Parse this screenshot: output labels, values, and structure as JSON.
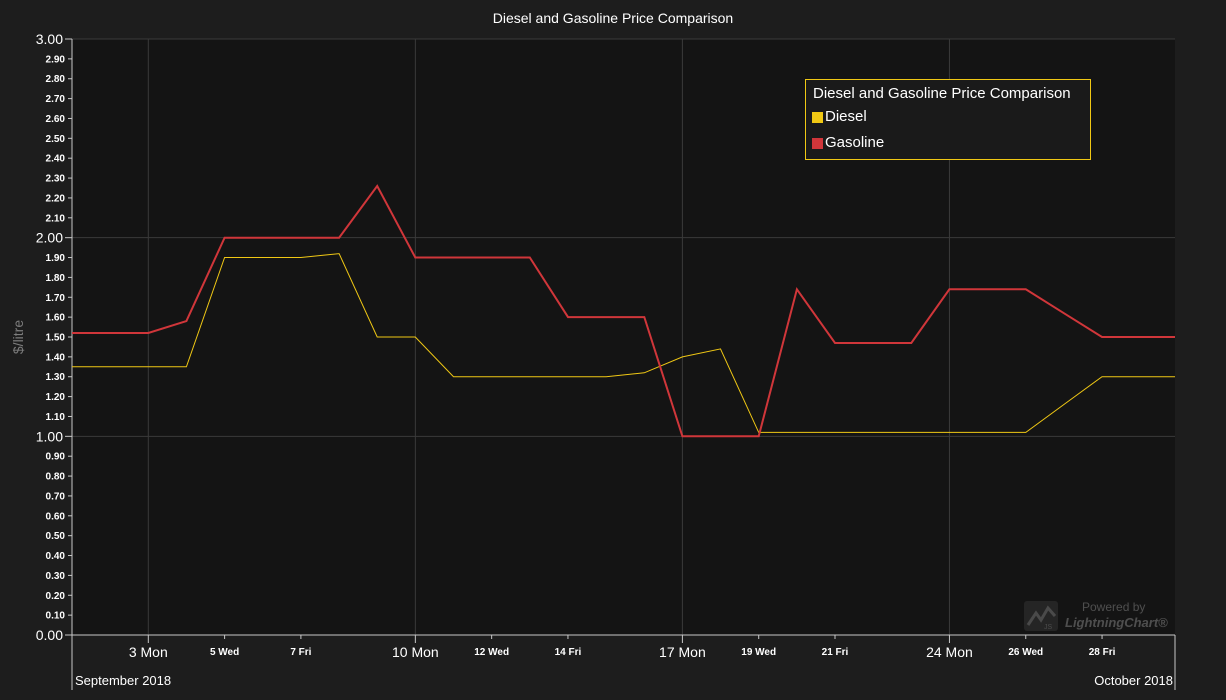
{
  "chart_data": {
    "type": "line",
    "title": "Diesel and Gasoline Price Comparison",
    "ylabel": "$/litre",
    "xlabel": "",
    "ylim": [
      0,
      3
    ],
    "grid": true,
    "legend_position": "top-right",
    "legend": {
      "title": "Diesel and Gasoline Price Comparison"
    },
    "x_axis": {
      "start_date": "2018-09-01",
      "end_date": "2018-09-30",
      "major_ticks": [
        {
          "date": "2018-09-03",
          "label": "3 Mon"
        },
        {
          "date": "2018-09-10",
          "label": "10 Mon"
        },
        {
          "date": "2018-09-17",
          "label": "17 Mon"
        },
        {
          "date": "2018-09-24",
          "label": "24 Mon"
        }
      ],
      "minor_ticks": [
        {
          "date": "2018-09-05",
          "label": "5 Wed"
        },
        {
          "date": "2018-09-07",
          "label": "7 Fri"
        },
        {
          "date": "2018-09-12",
          "label": "12 Wed"
        },
        {
          "date": "2018-09-14",
          "label": "14 Fri"
        },
        {
          "date": "2018-09-19",
          "label": "19 Wed"
        },
        {
          "date": "2018-09-21",
          "label": "21 Fri"
        },
        {
          "date": "2018-09-26",
          "label": "26 Wed"
        },
        {
          "date": "2018-09-28",
          "label": "28 Fri"
        }
      ],
      "month_labels": {
        "left": "September 2018",
        "right": "October 2018"
      }
    },
    "y_ticks": [
      "0.00",
      "0.10",
      "0.20",
      "0.30",
      "0.40",
      "0.50",
      "0.60",
      "0.70",
      "0.80",
      "0.90",
      "1.00",
      "1.10",
      "1.20",
      "1.30",
      "1.40",
      "1.50",
      "1.60",
      "1.70",
      "1.80",
      "1.90",
      "2.00",
      "2.10",
      "2.20",
      "2.30",
      "2.40",
      "2.50",
      "2.60",
      "2.70",
      "2.80",
      "2.90",
      "3.00"
    ],
    "y_major_ticks": [
      "0.00",
      "1.00",
      "2.00",
      "3.00"
    ],
    "series": [
      {
        "name": "Diesel",
        "color": "#f0c814",
        "points": [
          {
            "x": "2018-09-01",
            "y": 1.35
          },
          {
            "x": "2018-09-02",
            "y": 1.35
          },
          {
            "x": "2018-09-03",
            "y": 1.35
          },
          {
            "x": "2018-09-04",
            "y": 1.35
          },
          {
            "x": "2018-09-05",
            "y": 1.9
          },
          {
            "x": "2018-09-06",
            "y": 1.9
          },
          {
            "x": "2018-09-07",
            "y": 1.9
          },
          {
            "x": "2018-09-08",
            "y": 1.92
          },
          {
            "x": "2018-09-09",
            "y": 1.5
          },
          {
            "x": "2018-09-10",
            "y": 1.5
          },
          {
            "x": "2018-09-11",
            "y": 1.3
          },
          {
            "x": "2018-09-12",
            "y": 1.3
          },
          {
            "x": "2018-09-13",
            "y": 1.3
          },
          {
            "x": "2018-09-14",
            "y": 1.3
          },
          {
            "x": "2018-09-15",
            "y": 1.3
          },
          {
            "x": "2018-09-16",
            "y": 1.32
          },
          {
            "x": "2018-09-17",
            "y": 1.4
          },
          {
            "x": "2018-09-18",
            "y": 1.44
          },
          {
            "x": "2018-09-19",
            "y": 1.02
          },
          {
            "x": "2018-09-20",
            "y": 1.02
          },
          {
            "x": "2018-09-21",
            "y": 1.02
          },
          {
            "x": "2018-09-22",
            "y": 1.02
          },
          {
            "x": "2018-09-23",
            "y": 1.02
          },
          {
            "x": "2018-09-24",
            "y": 1.02
          },
          {
            "x": "2018-09-25",
            "y": 1.02
          },
          {
            "x": "2018-09-26",
            "y": 1.02
          },
          {
            "x": "2018-09-27",
            "y": 1.16
          },
          {
            "x": "2018-09-28",
            "y": 1.3
          },
          {
            "x": "2018-09-29",
            "y": 1.3
          },
          {
            "x": "2018-09-30",
            "y": 1.3
          }
        ]
      },
      {
        "name": "Gasoline",
        "color": "#d0363a",
        "points": [
          {
            "x": "2018-09-01",
            "y": 1.52
          },
          {
            "x": "2018-09-02",
            "y": 1.52
          },
          {
            "x": "2018-09-03",
            "y": 1.52
          },
          {
            "x": "2018-09-04",
            "y": 1.58
          },
          {
            "x": "2018-09-05",
            "y": 2.0
          },
          {
            "x": "2018-09-06",
            "y": 2.0
          },
          {
            "x": "2018-09-07",
            "y": 2.0
          },
          {
            "x": "2018-09-08",
            "y": 2.0
          },
          {
            "x": "2018-09-09",
            "y": 2.26
          },
          {
            "x": "2018-09-10",
            "y": 1.9
          },
          {
            "x": "2018-09-11",
            "y": 1.9
          },
          {
            "x": "2018-09-12",
            "y": 1.9
          },
          {
            "x": "2018-09-13",
            "y": 1.9
          },
          {
            "x": "2018-09-14",
            "y": 1.6
          },
          {
            "x": "2018-09-15",
            "y": 1.6
          },
          {
            "x": "2018-09-16",
            "y": 1.6
          },
          {
            "x": "2018-09-17",
            "y": 1.0
          },
          {
            "x": "2018-09-18",
            "y": 1.0
          },
          {
            "x": "2018-09-19",
            "y": 1.0
          },
          {
            "x": "2018-09-20",
            "y": 1.74
          },
          {
            "x": "2018-09-21",
            "y": 1.47
          },
          {
            "x": "2018-09-22",
            "y": 1.47
          },
          {
            "x": "2018-09-23",
            "y": 1.47
          },
          {
            "x": "2018-09-24",
            "y": 1.74
          },
          {
            "x": "2018-09-25",
            "y": 1.74
          },
          {
            "x": "2018-09-26",
            "y": 1.74
          },
          {
            "x": "2018-09-27",
            "y": 1.62
          },
          {
            "x": "2018-09-28",
            "y": 1.5
          },
          {
            "x": "2018-09-29",
            "y": 1.5
          },
          {
            "x": "2018-09-30",
            "y": 1.5
          }
        ]
      }
    ]
  },
  "watermark": {
    "powered_text": "Powered by",
    "brand_text": "LightningChart",
    "registered_mark": "®",
    "logo_icon": "lightningchart-logo-icon"
  }
}
